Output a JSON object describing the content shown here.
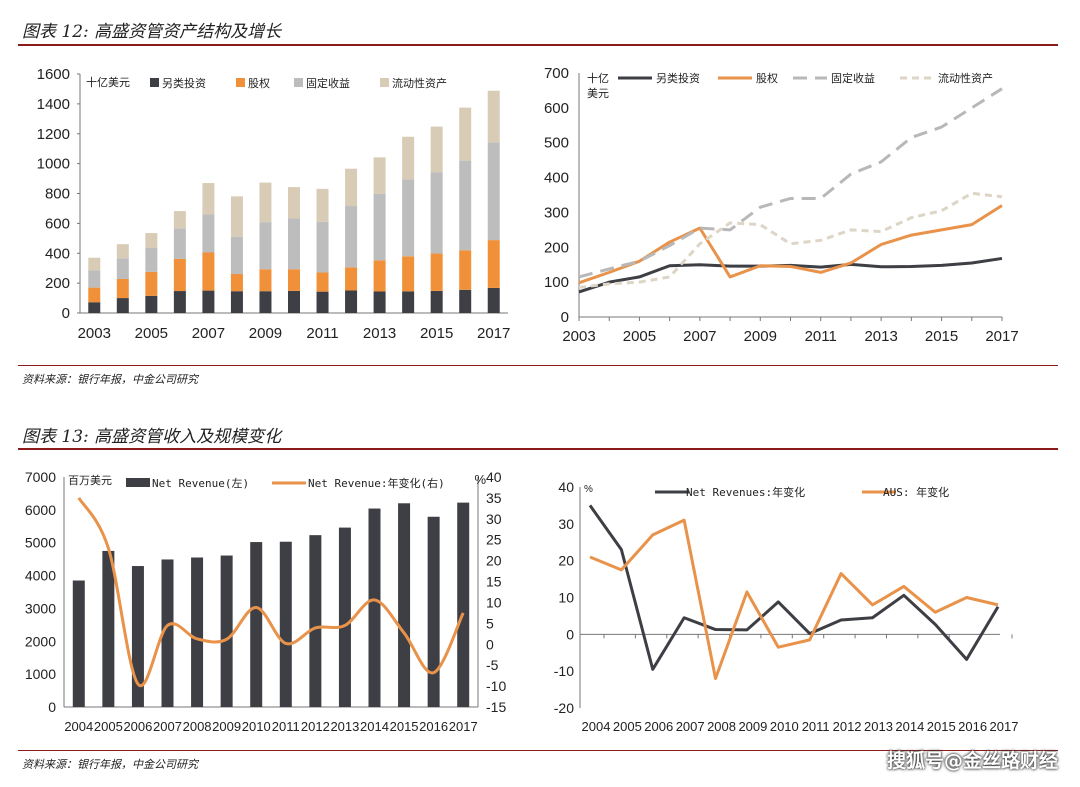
{
  "figure12": {
    "title": "图表 12: 高盛资管资产结构及增长",
    "source": "资料来源：银行年报，中金公司研究"
  },
  "figure13": {
    "title": "图表 13: 高盛资管收入及规模变化",
    "source": "资料来源：银行年报，中金公司研究"
  },
  "watermark": "搜狐号@金丝路财经",
  "colors": {
    "alt": "#3d3f44",
    "equity": "#f0913a",
    "fixed": "#bdbdbd",
    "liquidity": "#d9ccb6",
    "line_orange": "#e8924a",
    "rule": "#8b1a1a"
  },
  "chart_data": [
    {
      "type": "bar",
      "stacked": true,
      "unit_label": "十亿美元",
      "categories": [
        "2003",
        "2004",
        "2005",
        "2006",
        "2007",
        "2008",
        "2009",
        "2010",
        "2011",
        "2012",
        "2013",
        "2014",
        "2015",
        "2016",
        "2017"
      ],
      "x_tick_labels": [
        "2003",
        "2005",
        "2007",
        "2009",
        "2011",
        "2013",
        "2015",
        "2017"
      ],
      "y_ticks": [
        "0",
        "200",
        "400",
        "600",
        "800",
        "1000",
        "1200",
        "1400",
        "1600"
      ],
      "ylim": [
        0,
        1600
      ],
      "legend": "top",
      "series": [
        {
          "name": "另类投资",
          "values": [
            72,
            100,
            115,
            147,
            150,
            146,
            146,
            148,
            143,
            151,
            144,
            145,
            148,
            155,
            168
          ]
        },
        {
          "name": "股权",
          "values": [
            98,
            128,
            160,
            215,
            255,
            115,
            147,
            145,
            128,
            155,
            208,
            235,
            250,
            265,
            320
          ]
        },
        {
          "name": "固定收益",
          "values": [
            115,
            138,
            160,
            205,
            255,
            250,
            315,
            340,
            340,
            410,
            445,
            515,
            545,
            600,
            655
          ]
        },
        {
          "name": "流动性资产",
          "values": [
            85,
            95,
            100,
            115,
            210,
            270,
            265,
            210,
            220,
            250,
            245,
            285,
            305,
            355,
            345
          ]
        }
      ]
    },
    {
      "type": "line",
      "unit_label": [
        "十亿",
        "美元"
      ],
      "categories": [
        "2003",
        "2004",
        "2005",
        "2006",
        "2007",
        "2008",
        "2009",
        "2010",
        "2011",
        "2012",
        "2013",
        "2014",
        "2015",
        "2016",
        "2017"
      ],
      "x_tick_labels": [
        "2003",
        "2005",
        "2007",
        "2009",
        "2011",
        "2013",
        "2015",
        "2017"
      ],
      "y_ticks": [
        "0",
        "100",
        "200",
        "300",
        "400",
        "500",
        "600",
        "700"
      ],
      "ylim": [
        0,
        700
      ],
      "legend": "top",
      "series": [
        {
          "name": "另类投资",
          "values": [
            72,
            100,
            115,
            147,
            150,
            146,
            146,
            148,
            143,
            151,
            144,
            145,
            148,
            155,
            168
          ]
        },
        {
          "name": "股权",
          "values": [
            98,
            128,
            160,
            215,
            255,
            115,
            147,
            145,
            128,
            155,
            208,
            235,
            250,
            265,
            320
          ]
        },
        {
          "name": "固定收益",
          "values": [
            115,
            138,
            160,
            205,
            255,
            250,
            315,
            340,
            340,
            410,
            445,
            515,
            545,
            600,
            655
          ]
        },
        {
          "name": "流动性资产",
          "values": [
            85,
            95,
            100,
            115,
            210,
            270,
            265,
            210,
            220,
            250,
            245,
            285,
            305,
            355,
            345
          ]
        }
      ]
    },
    {
      "type": "bar",
      "unit_label": "百万美元",
      "right_unit_label": "%",
      "categories": [
        "2004",
        "2005",
        "2006",
        "2007",
        "2008",
        "2009",
        "2010",
        "2011",
        "2012",
        "2013",
        "2014",
        "2015",
        "2016",
        "2017"
      ],
      "y_ticks": [
        "0",
        "1000",
        "2000",
        "3000",
        "4000",
        "5000",
        "6000",
        "7000"
      ],
      "ylim": [
        0,
        7000
      ],
      "y2_ticks": [
        "-15",
        "-10",
        "-5",
        "0",
        "5",
        "10",
        "15",
        "20",
        "25",
        "30",
        "35",
        "40"
      ],
      "y2lim": [
        -15,
        40
      ],
      "legend": "top",
      "series": [
        {
          "name": "Net Revenue(左)",
          "type": "bar",
          "axis": "left",
          "values": [
            3850,
            4750,
            4290,
            4490,
            4550,
            4610,
            5020,
            5030,
            5230,
            5460,
            6040,
            6200,
            5790,
            6220
          ]
        },
        {
          "name": "Net Revenue:年变化(右)",
          "type": "line",
          "axis": "right",
          "values": [
            35,
            23,
            -9.5,
            4.5,
            1.3,
            1.2,
            8.8,
            0.2,
            3.9,
            4.5,
            10.6,
            2.7,
            -6.8,
            7.5
          ]
        }
      ]
    },
    {
      "type": "line",
      "unit_label": "%",
      "categories": [
        "2004",
        "2005",
        "2006",
        "2007",
        "2008",
        "2009",
        "2010",
        "2011",
        "2012",
        "2013",
        "2014",
        "2015",
        "2016",
        "2017"
      ],
      "y_ticks": [
        "-20",
        "-10",
        "0",
        "10",
        "20",
        "30",
        "40"
      ],
      "ylim": [
        -20,
        40
      ],
      "legend": "top",
      "series": [
        {
          "name": "Net Revenues:年变化",
          "values": [
            35,
            23,
            -9.5,
            4.5,
            1.3,
            1.2,
            8.8,
            0.2,
            3.9,
            4.5,
            10.6,
            2.7,
            -6.8,
            7.5
          ]
        },
        {
          "name": "AUS: 年变化",
          "values": [
            21,
            17.5,
            27,
            31,
            -12,
            11.5,
            -3.5,
            -1.5,
            16.5,
            8,
            13,
            6,
            10,
            8
          ]
        }
      ]
    }
  ]
}
